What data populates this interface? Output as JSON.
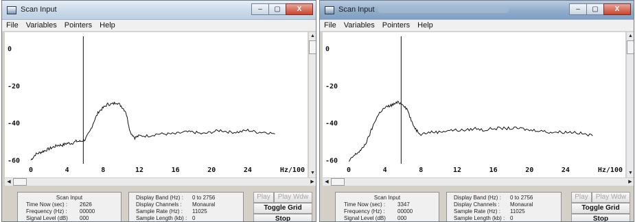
{
  "windows": [
    {
      "title": "Scan Input",
      "caption_buttons": {
        "minimize": "–",
        "maximize": "▢",
        "close": "X"
      },
      "menu": [
        "File",
        "Variables",
        "Pointers",
        "Help"
      ],
      "chart_data": {
        "type": "line",
        "x_ticks": [
          "0",
          "4",
          "8",
          "12",
          "16",
          "20",
          "24"
        ],
        "x_unit_label": "Hz/100",
        "y_ticks": [
          "0",
          "-20",
          "-40",
          "-60"
        ],
        "xlim": [
          0,
          27.5
        ],
        "ylim": [
          -62,
          2
        ],
        "cursor_x": 5.8,
        "series": [
          {
            "x": [
              0,
              0.5,
              1,
              1.5,
              2,
              2.5,
              3,
              3.5,
              4,
              4.5,
              5,
              5.5,
              6,
              6.5,
              7,
              7.5,
              8,
              8.5,
              9,
              9.5,
              10,
              10.5,
              11,
              11.5,
              12,
              13,
              14,
              15,
              16,
              17,
              18,
              19,
              20,
              21,
              22,
              23,
              24,
              25,
              26,
              27
            ],
            "y": [
              -60,
              -57,
              -56,
              -55,
              -54,
              -53,
              -52,
              -52,
              -51,
              -51,
              -50,
              -50,
              -49,
              -45,
              -39,
              -34,
              -32,
              -30,
              -30,
              -29,
              -31,
              -34,
              -45,
              -48,
              -47,
              -47,
              -46,
              -46,
              -46,
              -45,
              -45,
              -46,
              -45,
              -44,
              -45,
              -45,
              -44,
              -45,
              -45,
              -46
            ]
          }
        ]
      },
      "scan_panel": {
        "title": "Scan Input",
        "rows": [
          {
            "label": "Time Now (sec) :",
            "value": "2626"
          },
          {
            "label": "Frequency (Hz) :",
            "value": "00000"
          },
          {
            "label": "Signal Level (dB)",
            "value": "000"
          }
        ]
      },
      "display_panel": {
        "rows": [
          {
            "label": "Display Band (Hz) :",
            "value": "0 to 2756"
          },
          {
            "label": "Display Channels :",
            "value": "Monaural"
          },
          {
            "label": "Sample Rate (Hz) :",
            "value": "11025"
          },
          {
            "label": "Sample Length (kb) :",
            "value": "0"
          }
        ]
      },
      "buttons": {
        "play": "Play",
        "play_wdw": "Play Wdw",
        "toggle_grid": "Toggle Grid",
        "stop": "Stop"
      }
    },
    {
      "title": "Scan Input",
      "caption_buttons": {
        "minimize": "–",
        "maximize": "▢",
        "close": "X"
      },
      "menu": [
        "File",
        "Variables",
        "Pointers",
        "Help"
      ],
      "chart_data": {
        "type": "line",
        "x_ticks": [
          "0",
          "4",
          "8",
          "12",
          "16",
          "20",
          "24"
        ],
        "x_unit_label": "Hz/100",
        "y_ticks": [
          "0",
          "-20",
          "-40",
          "-60"
        ],
        "xlim": [
          0,
          27.5
        ],
        "ylim": [
          -62,
          2
        ],
        "cursor_x": 5.8,
        "series": [
          {
            "x": [
              0,
              0.5,
              1,
              1.5,
              2,
              2.5,
              3,
              3.5,
              4,
              4.5,
              5,
              5.5,
              6,
              6.5,
              7,
              7.5,
              8,
              9,
              10,
              11,
              12,
              13,
              14,
              15,
              16,
              17,
              18,
              19,
              20,
              21,
              22,
              23,
              24,
              25,
              26,
              27
            ],
            "y": [
              -61,
              -58,
              -56,
              -54,
              -50,
              -44,
              -38,
              -34,
              -32,
              -31,
              -30,
              -29,
              -30,
              -33,
              -40,
              -44,
              -46,
              -45,
              -45,
              -44,
              -44,
              -44,
              -43,
              -44,
              -43,
              -43,
              -43,
              -43,
              -44,
              -44,
              -45,
              -45,
              -45,
              -45,
              -46,
              -47
            ]
          }
        ]
      },
      "scan_panel": {
        "title": "Scan Input",
        "rows": [
          {
            "label": "Time Now (sec) :",
            "value": "3347"
          },
          {
            "label": "Frequency (Hz) :",
            "value": "00000"
          },
          {
            "label": "Signal Level (dB)",
            "value": "000"
          }
        ]
      },
      "display_panel": {
        "rows": [
          {
            "label": "Display Band (Hz) :",
            "value": "0 to 2756"
          },
          {
            "label": "Display Channels :",
            "value": "Monaural"
          },
          {
            "label": "Sample Rate (Hz) :",
            "value": "11025"
          },
          {
            "label": "Sample Length (kb) :",
            "value": "0"
          }
        ]
      },
      "buttons": {
        "play": "Play",
        "play_wdw": "Play Wdw",
        "toggle_grid": "Toggle Grid",
        "stop": "Stop"
      }
    }
  ]
}
